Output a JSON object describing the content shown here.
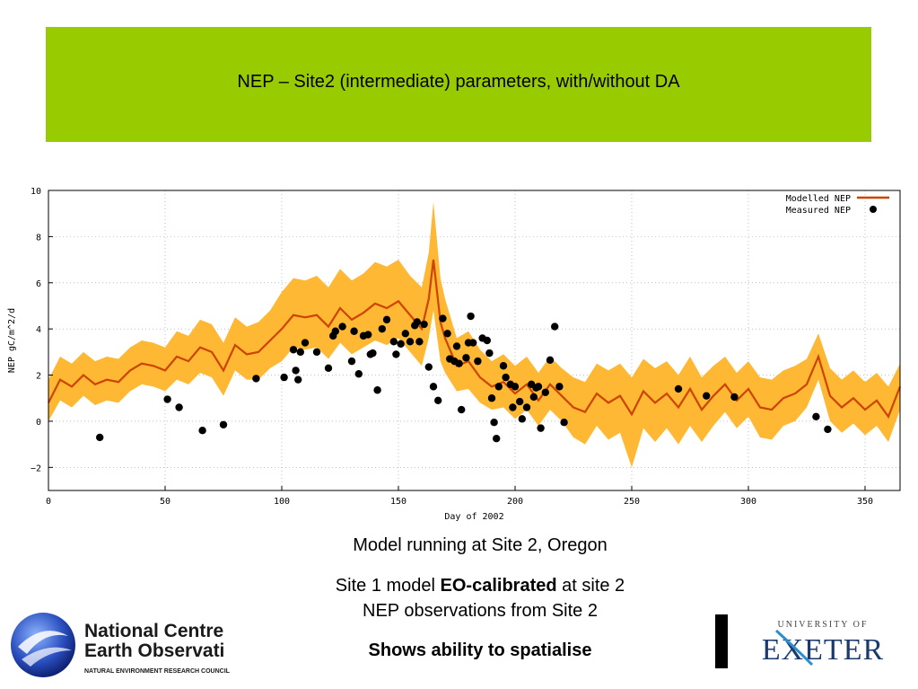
{
  "slide": {
    "title": "NEP – Site2 (intermediate) parameters, with/without DA",
    "caption_line1": "Model running at Site 2, Oregon",
    "caption_line2_prefix": "Site 1 model ",
    "caption_line2_bold": "EO-calibrated",
    "caption_line2_suffix": " at site 2",
    "caption_line3": "NEP observations from Site 2",
    "caption_line4": "Shows ability to spatialise",
    "accent_color": "#99cc00"
  },
  "logos": {
    "left_line1": "National Centre",
    "left_line2": "Earth Observati",
    "left_line3": "NATURAL ENVIRONMENT RESEARCH COUNCIL",
    "right_top": "UNIVERSITY OF",
    "right_main": "EXETER"
  },
  "chart_data": {
    "type": "line",
    "xlabel": "Day of 2002",
    "ylabel": "NEP gC/m^2/d",
    "xlim": [
      0,
      365
    ],
    "ylim": [
      -3,
      10
    ],
    "xticks": [
      "0",
      "50",
      "100",
      "150",
      "200",
      "250",
      "300",
      "350"
    ],
    "yticks": [
      "−2",
      "0",
      "2",
      "4",
      "6",
      "8",
      "10"
    ],
    "legend_position": "top-right",
    "band_color": "#ffb833",
    "line_color": "#cc4400",
    "series": [
      {
        "name": "Modelled NEP",
        "kind": "line",
        "x": [
          0,
          5,
          10,
          15,
          20,
          25,
          30,
          35,
          40,
          45,
          50,
          55,
          60,
          65,
          70,
          75,
          80,
          85,
          90,
          95,
          100,
          105,
          110,
          115,
          120,
          125,
          130,
          135,
          140,
          145,
          150,
          155,
          160,
          163,
          165,
          168,
          170,
          175,
          180,
          185,
          190,
          195,
          200,
          205,
          210,
          215,
          220,
          225,
          230,
          235,
          240,
          245,
          250,
          255,
          260,
          265,
          270,
          275,
          280,
          285,
          290,
          295,
          300,
          305,
          310,
          315,
          320,
          325,
          330,
          335,
          340,
          345,
          350,
          355,
          360,
          365
        ],
        "y": [
          0.8,
          1.8,
          1.5,
          2.0,
          1.6,
          1.8,
          1.7,
          2.2,
          2.5,
          2.4,
          2.2,
          2.8,
          2.6,
          3.2,
          3.0,
          2.2,
          3.3,
          2.9,
          3.0,
          3.5,
          4.0,
          4.6,
          4.5,
          4.6,
          4.1,
          4.9,
          4.4,
          4.7,
          5.1,
          4.9,
          5.2,
          4.6,
          4.0,
          5.3,
          7.0,
          4.3,
          3.6,
          2.4,
          2.6,
          1.9,
          1.5,
          1.7,
          1.2,
          1.6,
          0.9,
          1.6,
          1.1,
          0.6,
          0.4,
          1.2,
          0.8,
          1.1,
          0.3,
          1.3,
          0.8,
          1.2,
          0.6,
          1.4,
          0.5,
          1.1,
          1.6,
          0.9,
          1.4,
          0.6,
          0.5,
          1.0,
          1.2,
          1.6,
          2.8,
          1.1,
          0.6,
          1.0,
          0.5,
          0.9,
          0.2,
          1.5
        ],
        "band_lower": [
          0.0,
          0.9,
          0.6,
          1.1,
          0.7,
          0.9,
          0.8,
          1.3,
          1.6,
          1.5,
          1.3,
          1.8,
          1.6,
          2.1,
          1.9,
          1.1,
          2.2,
          1.8,
          1.8,
          2.3,
          2.6,
          3.2,
          3.1,
          3.2,
          2.7,
          3.4,
          2.9,
          3.2,
          3.5,
          3.3,
          3.6,
          3.0,
          2.4,
          3.6,
          4.8,
          2.6,
          2.1,
          1.3,
          1.4,
          0.8,
          0.5,
          0.6,
          0.1,
          0.5,
          -0.2,
          0.5,
          0.0,
          -0.7,
          -1.0,
          -0.2,
          -0.8,
          -0.5,
          -2.0,
          -0.3,
          -0.9,
          -0.3,
          -1.0,
          -0.2,
          -0.9,
          -0.2,
          0.4,
          -0.3,
          0.2,
          -0.7,
          -0.8,
          -0.2,
          0.0,
          0.6,
          1.8,
          0.0,
          -0.5,
          -0.1,
          -0.6,
          -0.2,
          -0.9,
          0.5
        ],
        "band_upper": [
          1.8,
          2.8,
          2.5,
          3.0,
          2.6,
          2.8,
          2.7,
          3.2,
          3.5,
          3.4,
          3.2,
          3.9,
          3.7,
          4.4,
          4.2,
          3.4,
          4.5,
          4.1,
          4.3,
          4.8,
          5.6,
          6.2,
          6.1,
          6.3,
          5.8,
          6.6,
          6.1,
          6.4,
          6.9,
          6.7,
          7.0,
          6.3,
          5.8,
          7.3,
          9.5,
          6.2,
          5.3,
          3.6,
          3.9,
          3.1,
          2.6,
          2.9,
          2.4,
          2.8,
          2.1,
          2.8,
          2.3,
          1.9,
          1.7,
          2.5,
          2.2,
          2.5,
          1.9,
          2.7,
          2.3,
          2.6,
          2.0,
          2.8,
          1.9,
          2.4,
          2.8,
          2.1,
          2.6,
          1.9,
          1.8,
          2.2,
          2.4,
          2.7,
          3.8,
          2.3,
          1.8,
          2.2,
          1.7,
          2.1,
          1.5,
          2.5
        ]
      },
      {
        "name": "Measured NEP",
        "kind": "scatter",
        "x": [
          22,
          51,
          56,
          66,
          75,
          89,
          101,
          105,
          106,
          107,
          108,
          110,
          115,
          120,
          122,
          123,
          126,
          130,
          131,
          133,
          135,
          137,
          138,
          139,
          141,
          143,
          145,
          148,
          149,
          151,
          153,
          155,
          157,
          158,
          159,
          161,
          163,
          165,
          167,
          169,
          171,
          172,
          174,
          175,
          176,
          177,
          179,
          180,
          181,
          182,
          184,
          186,
          188,
          189,
          190,
          191,
          192,
          193,
          195,
          196,
          198,
          199,
          200,
          202,
          203,
          205,
          207,
          208,
          209,
          210,
          211,
          213,
          215,
          217,
          219,
          221,
          270,
          282,
          294,
          329,
          334
        ],
        "y": [
          -0.7,
          0.95,
          0.6,
          -0.4,
          -0.15,
          1.85,
          1.9,
          3.1,
          2.2,
          1.8,
          3.0,
          3.4,
          3.0,
          2.3,
          3.7,
          3.9,
          4.1,
          2.6,
          3.9,
          2.05,
          3.7,
          3.75,
          2.9,
          2.95,
          1.35,
          4.0,
          4.4,
          3.45,
          2.9,
          3.35,
          3.8,
          3.45,
          4.15,
          4.3,
          3.45,
          4.2,
          2.35,
          1.5,
          0.9,
          4.45,
          3.8,
          2.7,
          2.6,
          3.25,
          2.5,
          0.5,
          2.75,
          3.4,
          4.55,
          3.4,
          2.6,
          3.6,
          3.5,
          2.95,
          1.0,
          -0.05,
          -0.75,
          1.5,
          2.4,
          1.9,
          1.6,
          0.6,
          1.5,
          0.85,
          0.1,
          0.6,
          1.6,
          1.05,
          1.45,
          1.5,
          -0.3,
          1.25,
          2.65,
          4.1,
          1.5,
          -0.05,
          1.4,
          1.1,
          1.05,
          0.2,
          -0.35
        ]
      }
    ]
  }
}
